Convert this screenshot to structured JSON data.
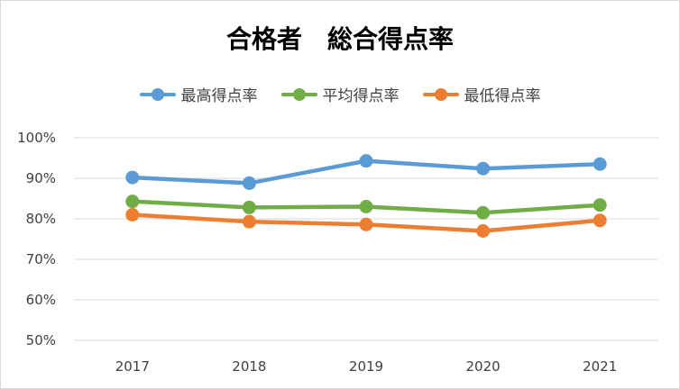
{
  "chart_data": {
    "type": "line",
    "title": "合格者　総合得点率",
    "categories": [
      "2017",
      "2018",
      "2019",
      "2020",
      "2021"
    ],
    "y_ticks": [
      "50%",
      "60%",
      "70%",
      "80%",
      "90%",
      "100%"
    ],
    "ylim": [
      50,
      100
    ],
    "y_unit": "%",
    "grid": true,
    "legend_position": "top",
    "series": [
      {
        "name": "最高得点率",
        "color": "#5b9bd5",
        "values": [
          90.2,
          88.8,
          94.3,
          92.4,
          93.5
        ]
      },
      {
        "name": "平均得点率",
        "color": "#70ad47",
        "values": [
          84.3,
          82.8,
          83.0,
          81.5,
          83.4
        ]
      },
      {
        "name": "最低得点率",
        "color": "#ed7d31",
        "values": [
          81.0,
          79.3,
          78.6,
          77.0,
          79.6
        ]
      }
    ]
  }
}
